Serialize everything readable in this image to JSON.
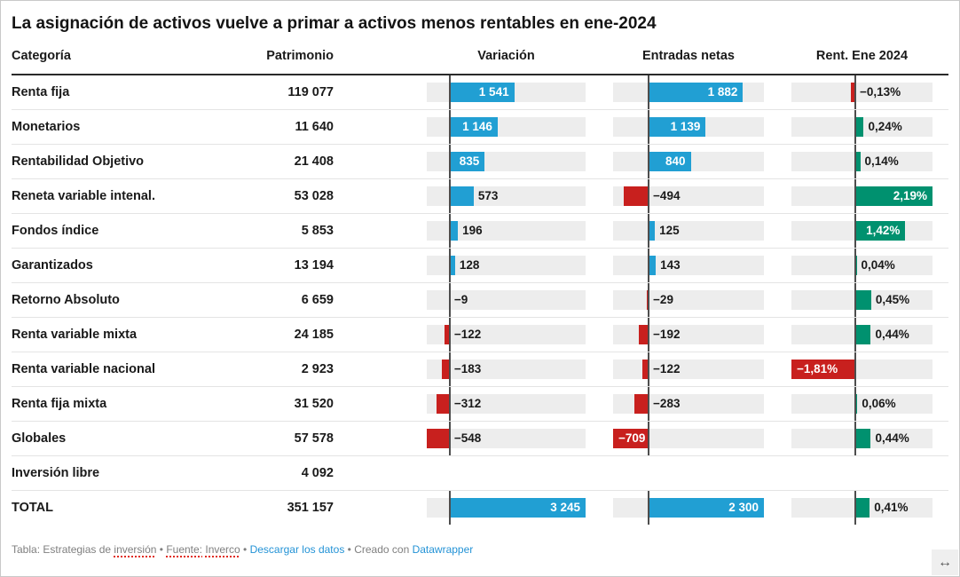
{
  "title": "La asignación de activos vuelve a primar a activos menos rentables en ene-2024",
  "columns": {
    "category": "Categoría",
    "patrimonio": "Patrimonio",
    "variacion": "Variación",
    "entradas": "Entradas netas",
    "rent": "Rent. Ene 2024"
  },
  "chart_data": {
    "type": "table",
    "bar_columns": {
      "variacion": {
        "min": -548,
        "max": 3245,
        "pos_color": "positive_blue",
        "neg_color": "negative_red"
      },
      "entradas": {
        "min": -709,
        "max": 2300,
        "pos_color": "positive_blue",
        "neg_color": "negative_red"
      },
      "rent": {
        "min": -1.81,
        "max": 2.19,
        "pos_color": "positive_green",
        "neg_color": "negative_red"
      }
    },
    "rows": [
      {
        "name": "Renta fija",
        "patrimonio": "119 077",
        "variacion": {
          "v": 1541,
          "label": "1 541",
          "inside": true
        },
        "entradas": {
          "v": 1882,
          "label": "1 882",
          "inside": true
        },
        "rent": {
          "v": -0.13,
          "label": "−0,13%",
          "inside": false
        }
      },
      {
        "name": "Monetarios",
        "patrimonio": "11 640",
        "variacion": {
          "v": 1146,
          "label": "1 146",
          "inside": true
        },
        "entradas": {
          "v": 1139,
          "label": "1 139",
          "inside": true
        },
        "rent": {
          "v": 0.24,
          "label": "0,24%",
          "inside": false
        }
      },
      {
        "name": "Rentabilidad Objetivo",
        "patrimonio": "21 408",
        "variacion": {
          "v": 835,
          "label": "835",
          "inside": true
        },
        "entradas": {
          "v": 840,
          "label": "840",
          "inside": true
        },
        "rent": {
          "v": 0.14,
          "label": "0,14%",
          "inside": false
        }
      },
      {
        "name": "Reneta variable intenal.",
        "patrimonio": "53 028",
        "variacion": {
          "v": 573,
          "label": "573",
          "inside": false
        },
        "entradas": {
          "v": -494,
          "label": "−494",
          "inside": false
        },
        "rent": {
          "v": 2.19,
          "label": "2,19%",
          "inside": true
        }
      },
      {
        "name": "Fondos índice",
        "patrimonio": "5 853",
        "variacion": {
          "v": 196,
          "label": "196",
          "inside": false
        },
        "entradas": {
          "v": 125,
          "label": "125",
          "inside": false
        },
        "rent": {
          "v": 1.42,
          "label": "1,42%",
          "inside": true
        }
      },
      {
        "name": "Garantizados",
        "patrimonio": "13 194",
        "variacion": {
          "v": 128,
          "label": "128",
          "inside": false
        },
        "entradas": {
          "v": 143,
          "label": "143",
          "inside": false
        },
        "rent": {
          "v": 0.04,
          "label": "0,04%",
          "inside": false
        }
      },
      {
        "name": "Retorno Absoluto",
        "patrimonio": "6 659",
        "variacion": {
          "v": -9,
          "label": "−9",
          "inside": false
        },
        "entradas": {
          "v": -29,
          "label": "−29",
          "inside": false
        },
        "rent": {
          "v": 0.45,
          "label": "0,45%",
          "inside": false
        }
      },
      {
        "name": "Renta variable mixta",
        "patrimonio": "24 185",
        "variacion": {
          "v": -122,
          "label": "−122",
          "inside": false
        },
        "entradas": {
          "v": -192,
          "label": "−192",
          "inside": false
        },
        "rent": {
          "v": 0.44,
          "label": "0,44%",
          "inside": false
        }
      },
      {
        "name": "Renta variable nacional",
        "patrimonio": "2 923",
        "variacion": {
          "v": -183,
          "label": "−183",
          "inside": false
        },
        "entradas": {
          "v": -122,
          "label": "−122",
          "inside": false
        },
        "rent": {
          "v": -1.81,
          "label": "−1,81%",
          "inside": true
        }
      },
      {
        "name": "Renta fija mixta",
        "patrimonio": "31 520",
        "variacion": {
          "v": -312,
          "label": "−312",
          "inside": false
        },
        "entradas": {
          "v": -283,
          "label": "−283",
          "inside": false
        },
        "rent": {
          "v": 0.06,
          "label": "0,06%",
          "inside": false
        }
      },
      {
        "name": "Globales",
        "patrimonio": "57 578",
        "variacion": {
          "v": -548,
          "label": "−548",
          "inside": false
        },
        "entradas": {
          "v": -709,
          "label": "−709",
          "inside": true
        },
        "rent": {
          "v": 0.44,
          "label": "0,44%",
          "inside": false
        }
      },
      {
        "name": "Inversión libre",
        "patrimonio": "4 092",
        "variacion": null,
        "entradas": null,
        "rent": null
      },
      {
        "name": "TOTAL",
        "patrimonio": "351 157",
        "variacion": {
          "v": 3245,
          "label": "3 245",
          "inside": true
        },
        "entradas": {
          "v": 2300,
          "label": "2 300",
          "inside": true
        },
        "rent": {
          "v": 0.41,
          "label": "0,41%",
          "inside": false
        }
      }
    ]
  },
  "colors": {
    "positive_blue": "#219fd3",
    "negative_red": "#c8201e",
    "positive_green": "#00916f",
    "track": "#ededed",
    "zero_line": "#4d4d4d"
  },
  "footer": {
    "parts": [
      {
        "text": "Tabla: "
      },
      {
        "text": "Estrategias de "
      },
      {
        "text": "inversión",
        "spell": true
      },
      {
        "text": " • "
      },
      {
        "text": "Fuente:",
        "spell": true
      },
      {
        "text": " "
      },
      {
        "text": "Inverco",
        "spell": true
      },
      {
        "text": " • "
      },
      {
        "text": "Descargar",
        "link": true,
        "spell": true,
        "name": "download-data-link"
      },
      {
        "text": " los datos",
        "link": true,
        "name": "download-data-link"
      },
      {
        "text": " • "
      },
      {
        "text": "Creado con "
      },
      {
        "text": "Datawrapper",
        "link": true,
        "name": "datawrapper-link"
      }
    ]
  },
  "icons": {
    "resize": "↔"
  }
}
